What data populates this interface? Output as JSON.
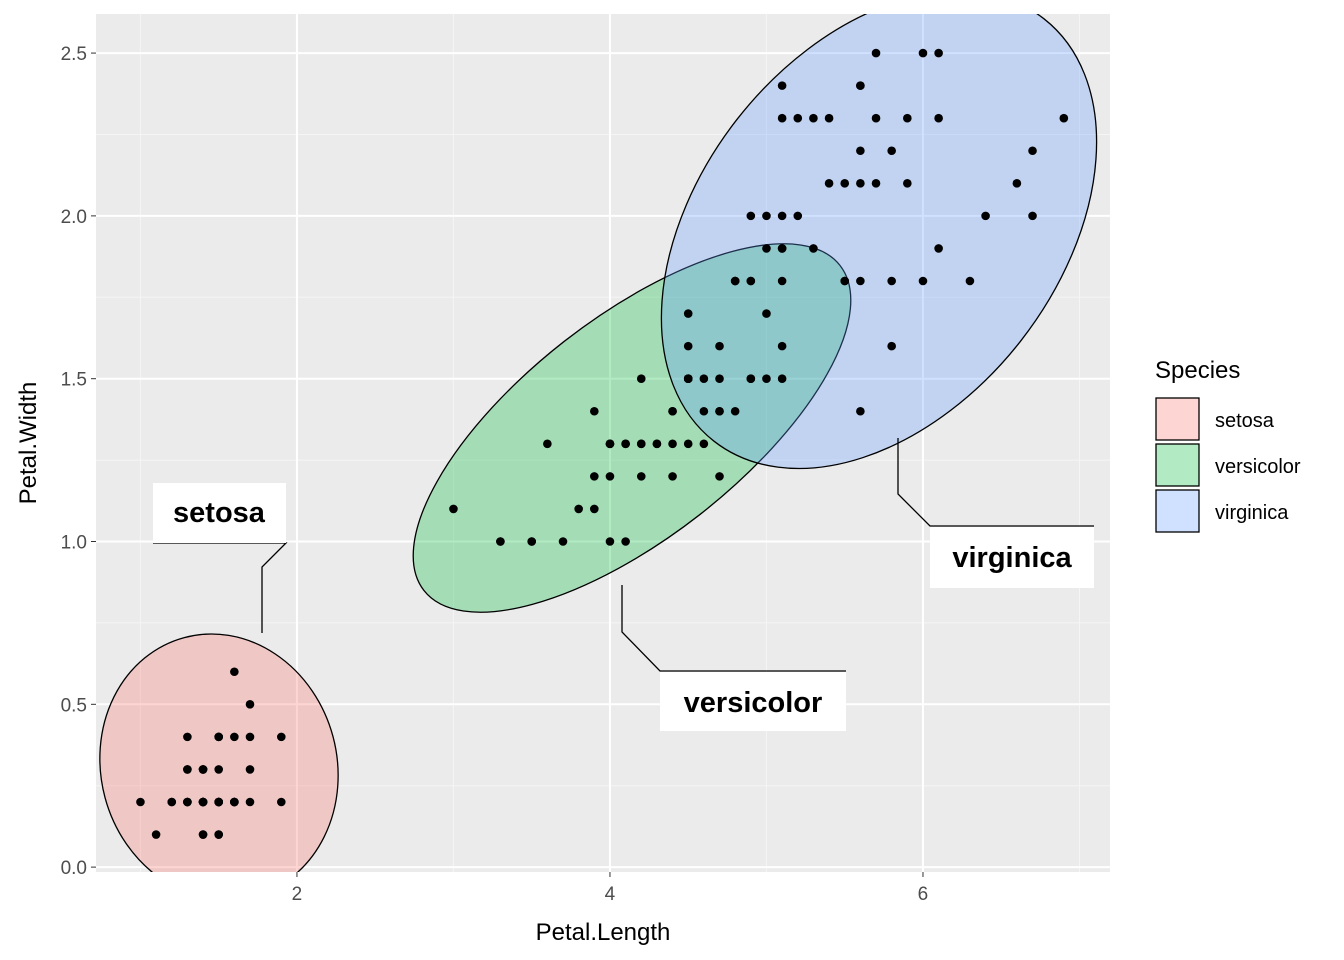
{
  "chart_data": {
    "type": "scatter",
    "title": "",
    "xlabel": "Petal.Length",
    "ylabel": "Petal.Width",
    "xlim": [
      0.716,
      7.195
    ],
    "ylim": [
      -0.015,
      2.62
    ],
    "xticks": [
      2,
      4,
      6
    ],
    "xtick_labels": [
      "2",
      "4",
      "6"
    ],
    "yticks": [
      0,
      0.5,
      1,
      1.5,
      2,
      2.5
    ],
    "ytick_labels": [
      "0.0",
      "0.5",
      "1.0",
      "1.5",
      "2.0",
      "2.5"
    ],
    "grid": true,
    "legend": {
      "title": "Species",
      "placement": "right",
      "entries": [
        "setosa",
        "versicolor",
        "virginica"
      ]
    },
    "colors": {
      "setosa": "#F8766D",
      "versicolor": "#00BA38",
      "virginica": "#619CFF",
      "panel": "#EBEBEB",
      "points": "#000000"
    },
    "series": [
      {
        "name": "setosa",
        "label": "setosa",
        "x": [
          1.4,
          1.4,
          1.3,
          1.5,
          1.4,
          1.7,
          1.4,
          1.5,
          1.4,
          1.5,
          1.5,
          1.6,
          1.4,
          1.1,
          1.2,
          1.5,
          1.3,
          1.4,
          1.7,
          1.5,
          1.7,
          1.5,
          1.0,
          1.7,
          1.9,
          1.6,
          1.6,
          1.5,
          1.4,
          1.6,
          1.6,
          1.5,
          1.5,
          1.4,
          1.5,
          1.2,
          1.3,
          1.4,
          1.3,
          1.5,
          1.3,
          1.3,
          1.3,
          1.6,
          1.9,
          1.4,
          1.6,
          1.4,
          1.5,
          1.4
        ],
        "y": [
          0.2,
          0.2,
          0.2,
          0.2,
          0.2,
          0.4,
          0.3,
          0.2,
          0.2,
          0.1,
          0.2,
          0.2,
          0.1,
          0.1,
          0.2,
          0.4,
          0.4,
          0.3,
          0.3,
          0.3,
          0.2,
          0.4,
          0.2,
          0.5,
          0.2,
          0.2,
          0.4,
          0.2,
          0.2,
          0.2,
          0.2,
          0.4,
          0.1,
          0.2,
          0.2,
          0.2,
          0.2,
          0.1,
          0.2,
          0.2,
          0.3,
          0.3,
          0.2,
          0.6,
          0.4,
          0.3,
          0.2,
          0.2,
          0.2,
          0.2
        ]
      },
      {
        "name": "versicolor",
        "label": "versicolor",
        "x": [
          4.7,
          4.5,
          4.9,
          4.0,
          4.6,
          4.5,
          4.7,
          3.3,
          4.6,
          3.9,
          3.5,
          4.2,
          4.0,
          4.7,
          3.6,
          4.4,
          4.5,
          4.1,
          4.5,
          3.9,
          4.8,
          4.0,
          4.9,
          4.7,
          4.3,
          4.4,
          4.8,
          5.0,
          4.5,
          3.5,
          3.8,
          3.7,
          3.9,
          5.1,
          4.5,
          4.5,
          4.7,
          4.4,
          4.1,
          4.0,
          4.4,
          4.6,
          4.0,
          3.3,
          4.2,
          4.2,
          4.2,
          4.3,
          3.0,
          4.1
        ],
        "y": [
          1.4,
          1.5,
          1.5,
          1.3,
          1.5,
          1.3,
          1.6,
          1.0,
          1.3,
          1.4,
          1.0,
          1.5,
          1.0,
          1.4,
          1.3,
          1.4,
          1.5,
          1.0,
          1.5,
          1.1,
          1.8,
          1.3,
          1.5,
          1.2,
          1.3,
          1.4,
          1.4,
          1.7,
          1.5,
          1.0,
          1.1,
          1.0,
          1.2,
          1.6,
          1.5,
          1.6,
          1.5,
          1.3,
          1.3,
          1.3,
          1.2,
          1.4,
          1.2,
          1.0,
          1.3,
          1.2,
          1.3,
          1.3,
          1.1,
          1.3
        ]
      },
      {
        "name": "virginica",
        "label": "virginica",
        "x": [
          6.0,
          5.1,
          5.9,
          5.6,
          5.8,
          6.6,
          4.5,
          6.3,
          5.8,
          6.1,
          5.1,
          5.3,
          5.5,
          5.0,
          5.1,
          5.3,
          5.5,
          6.7,
          6.9,
          5.0,
          5.7,
          4.9,
          6.7,
          4.9,
          5.7,
          6.0,
          4.8,
          4.9,
          5.6,
          5.8,
          6.1,
          6.4,
          5.6,
          5.1,
          5.6,
          6.1,
          5.6,
          5.5,
          4.8,
          5.4,
          5.6,
          5.1,
          5.1,
          5.9,
          5.7,
          5.2,
          5.0,
          5.2,
          5.4,
          5.1
        ],
        "y": [
          2.5,
          1.9,
          2.1,
          1.8,
          2.2,
          2.1,
          1.7,
          1.8,
          1.8,
          2.5,
          2.0,
          1.9,
          2.1,
          2.0,
          2.4,
          2.3,
          1.8,
          2.2,
          2.3,
          1.5,
          2.3,
          2.0,
          2.0,
          1.8,
          2.1,
          1.8,
          1.8,
          1.8,
          2.1,
          1.6,
          1.9,
          2.0,
          2.2,
          1.5,
          1.4,
          2.3,
          2.4,
          1.8,
          1.8,
          2.1,
          2.4,
          2.3,
          1.9,
          2.3,
          2.5,
          2.3,
          1.9,
          2.0,
          2.3,
          1.8
        ]
      }
    ]
  }
}
